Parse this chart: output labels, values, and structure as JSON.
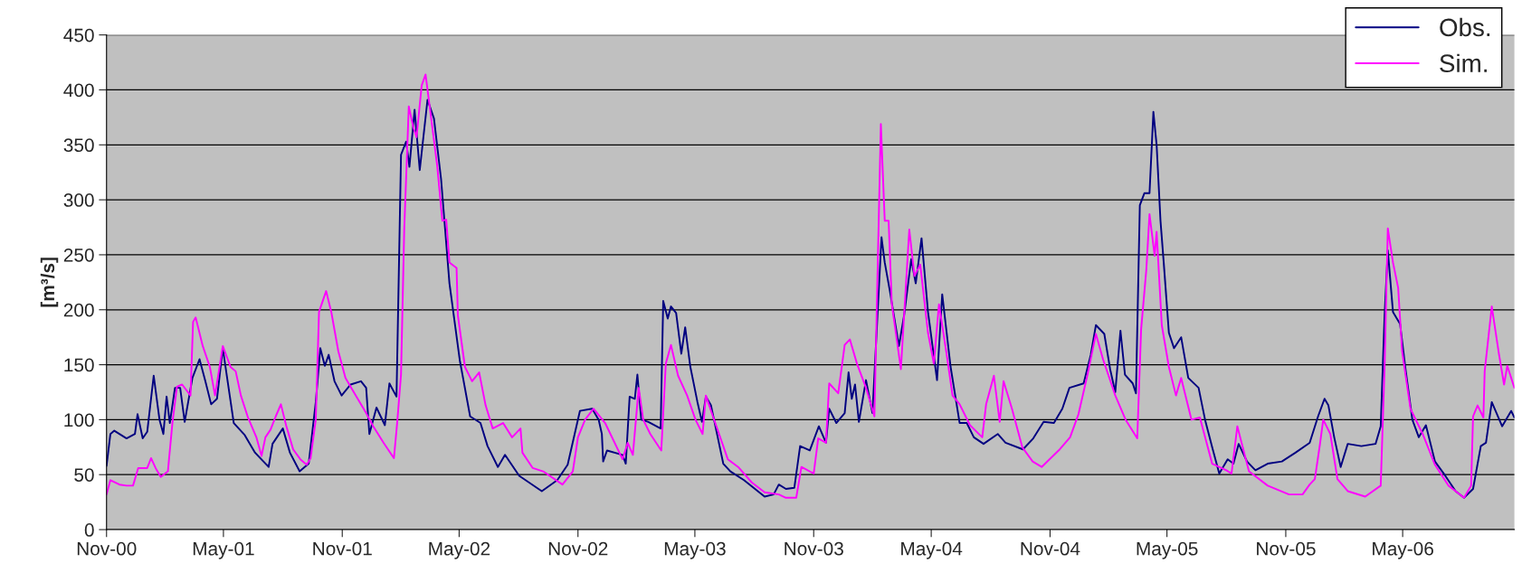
{
  "chart_data": {
    "type": "line",
    "ylabel": "[m³/s]",
    "xlim": [
      "2000-11-01",
      "2006-10-21"
    ],
    "ylim": [
      0,
      450
    ],
    "yticks": [
      0,
      50,
      100,
      150,
      200,
      250,
      300,
      350,
      400,
      450
    ],
    "xticks": [
      {
        "value": "2000-11-01",
        "label": "Nov-00"
      },
      {
        "value": "2001-05-01",
        "label": "May-01"
      },
      {
        "value": "2001-11-01",
        "label": "Nov-01"
      },
      {
        "value": "2002-05-01",
        "label": "May-02"
      },
      {
        "value": "2002-11-01",
        "label": "Nov-02"
      },
      {
        "value": "2003-05-01",
        "label": "May-03"
      },
      {
        "value": "2003-11-01",
        "label": "Nov-03"
      },
      {
        "value": "2004-05-01",
        "label": "May-04"
      },
      {
        "value": "2004-11-01",
        "label": "Nov-04"
      },
      {
        "value": "2005-05-01",
        "label": "May-05"
      },
      {
        "value": "2005-11-01",
        "label": "Nov-05"
      },
      {
        "value": "2006-05-01",
        "label": "May-06"
      }
    ],
    "grid": "y",
    "legend": "top right",
    "marker": "none",
    "line_style": "solid",
    "series": [
      {
        "name": "Obs.",
        "color": "#000080",
        "x": [
          "2000-11-01",
          "2000-11-07",
          "2000-11-13",
          "2000-12-02",
          "2000-12-15",
          "2000-12-19",
          "2000-12-27",
          "2001-01-03",
          "2001-01-13",
          "2001-01-22",
          "2001-01-28",
          "2001-02-02",
          "2001-02-07",
          "2001-02-15",
          "2001-02-23",
          "2001-03-02",
          "2001-03-14",
          "2001-03-25",
          "2001-04-03",
          "2001-04-12",
          "2001-04-21",
          "2001-04-30",
          "2001-05-09",
          "2001-05-17",
          "2001-06-03",
          "2001-06-19",
          "2001-07-10",
          "2001-07-16",
          "2001-08-01",
          "2001-08-12",
          "2001-08-27",
          "2001-09-10",
          "2001-09-21",
          "2001-09-28",
          "2001-10-05",
          "2001-10-11",
          "2001-10-20",
          "2001-10-31",
          "2001-11-14",
          "2001-11-30",
          "2001-12-08",
          "2001-12-13",
          "2001-12-24",
          "2002-01-06",
          "2002-01-13",
          "2002-01-24",
          "2002-01-31",
          "2002-02-08",
          "2002-02-13",
          "2002-02-21",
          "2002-03-01",
          "2002-03-13",
          "2002-03-23",
          "2002-04-03",
          "2002-04-16",
          "2002-05-02",
          "2002-05-18",
          "2002-06-03",
          "2002-06-14",
          "2002-06-30",
          "2002-07-11",
          "2002-08-02",
          "2002-09-06",
          "2002-09-30",
          "2002-10-16",
          "2002-11-04",
          "2002-11-23",
          "2002-12-03",
          "2002-12-08",
          "2002-12-10",
          "2002-12-16",
          "2003-01-09",
          "2003-01-14",
          "2003-01-20",
          "2003-01-28",
          "2003-02-01",
          "2003-02-07",
          "2003-02-18",
          "2003-03-09",
          "2003-03-13",
          "2003-03-20",
          "2003-03-25",
          "2003-04-02",
          "2003-04-10",
          "2003-04-16",
          "2003-04-24",
          "2003-05-05",
          "2003-05-12",
          "2003-05-18",
          "2003-05-26",
          "2003-06-14",
          "2003-06-25",
          "2003-07-16",
          "2003-08-17",
          "2003-08-31",
          "2003-09-08",
          "2003-09-19",
          "2003-10-02",
          "2003-10-11",
          "2003-10-26",
          "2003-11-09",
          "2003-11-20",
          "2003-11-25",
          "2003-12-06",
          "2003-12-19",
          "2003-12-25",
          "2003-12-30",
          "2004-01-04",
          "2004-01-10",
          "2004-01-21",
          "2004-01-31",
          "2004-02-14",
          "2004-02-19",
          "2004-02-27",
          "2004-03-12",
          "2004-03-20",
          "2004-03-31",
          "2004-04-07",
          "2004-04-16",
          "2004-04-26",
          "2004-05-10",
          "2004-05-18",
          "2004-05-31",
          "2004-06-14",
          "2004-06-25",
          "2004-07-06",
          "2004-07-21",
          "2004-08-12",
          "2004-08-24",
          "2004-09-20",
          "2004-10-06",
          "2004-10-22",
          "2004-11-07",
          "2004-11-20",
          "2004-12-01",
          "2004-12-23",
          "2005-01-03",
          "2005-01-11",
          "2005-01-24",
          "2005-02-02",
          "2005-02-10",
          "2005-02-18",
          "2005-02-25",
          "2005-03-09",
          "2005-03-14",
          "2005-03-20",
          "2005-03-27",
          "2005-04-04",
          "2005-04-10",
          "2005-04-15",
          "2005-04-21",
          "2005-04-26",
          "2005-05-04",
          "2005-05-12",
          "2005-05-23",
          "2005-06-03",
          "2005-06-19",
          "2005-06-29",
          "2005-07-10",
          "2005-07-21",
          "2005-08-03",
          "2005-08-12",
          "2005-08-20",
          "2005-09-02",
          "2005-09-15",
          "2005-10-04",
          "2005-10-26",
          "2005-11-16",
          "2005-12-08",
          "2005-12-21",
          "2005-12-31",
          "2006-01-06",
          "2006-01-15",
          "2006-01-25",
          "2006-02-05",
          "2006-02-26",
          "2006-03-20",
          "2006-03-28",
          "2006-04-03",
          "2006-04-08",
          "2006-04-16",
          "2006-04-27",
          "2006-05-05",
          "2006-05-16",
          "2006-05-26",
          "2006-06-06",
          "2006-06-20",
          "2006-07-06",
          "2006-07-22",
          "2006-08-04",
          "2006-08-18",
          "2006-08-30",
          "2006-09-07",
          "2006-09-16",
          "2006-10-02",
          "2006-10-16",
          "2006-10-21"
        ],
        "values": [
          58,
          87,
          90,
          83,
          87,
          105,
          83,
          89,
          140,
          100,
          87,
          121,
          97,
          129,
          129,
          98,
          138,
          155,
          135,
          114,
          119,
          165,
          129,
          97,
          86,
          70,
          57,
          78,
          92,
          70,
          53,
          60,
          116,
          165,
          149,
          159,
          135,
          122,
          132,
          135,
          129,
          87,
          111,
          95,
          133,
          121,
          341,
          353,
          330,
          382,
          327,
          391,
          374,
          319,
          224,
          154,
          103,
          97,
          76,
          57,
          68,
          49,
          35,
          45,
          59,
          108,
          110,
          100,
          87,
          62,
          72,
          68,
          60,
          121,
          119,
          141,
          100,
          98,
          92,
          208,
          192,
          203,
          197,
          160,
          184,
          148,
          116,
          98,
          121,
          113,
          60,
          53,
          45,
          30,
          32,
          41,
          37,
          38,
          76,
          72,
          94,
          79,
          110,
          97,
          106,
          143,
          119,
          132,
          98,
          136,
          106,
          266,
          243,
          217,
          167,
          195,
          246,
          224,
          265,
          198,
          136,
          214,
          148,
          97,
          97,
          84,
          78,
          87,
          79,
          73,
          83,
          98,
          97,
          110,
          129,
          133,
          159,
          186,
          178,
          146,
          125,
          181,
          141,
          133,
          124,
          295,
          306,
          306,
          380,
          350,
          281,
          243,
          179,
          165,
          175,
          138,
          129,
          100,
          75,
          51,
          64,
          60,
          78,
          62,
          54,
          60,
          62,
          70,
          79,
          103,
          119,
          113,
          84,
          57,
          78,
          76,
          78,
          94,
          195,
          254,
          198,
          187,
          148,
          100,
          84,
          95,
          62,
          49,
          35,
          29,
          37,
          76,
          79,
          116,
          94,
          108,
          102
        ]
      },
      {
        "name": "Sim.",
        "color": "#ff00ff",
        "x": [
          "2000-11-01",
          "2000-11-07",
          "2000-11-21",
          "2000-12-02",
          "2000-12-12",
          "2000-12-20",
          "2001-01-03",
          "2001-01-09",
          "2001-01-16",
          "2001-01-24",
          "2001-02-04",
          "2001-02-11",
          "2001-02-18",
          "2001-02-26",
          "2001-03-11",
          "2001-03-15",
          "2001-03-19",
          "2001-03-30",
          "2001-04-10",
          "2001-04-18",
          "2001-04-30",
          "2001-05-12",
          "2001-05-20",
          "2001-05-28",
          "2001-06-08",
          "2001-06-21",
          "2001-06-29",
          "2001-07-05",
          "2001-07-13",
          "2001-07-21",
          "2001-07-29",
          "2001-08-06",
          "2001-08-17",
          "2001-08-28",
          "2001-09-07",
          "2001-09-13",
          "2001-09-21",
          "2001-09-26",
          "2001-10-07",
          "2001-10-15",
          "2001-10-26",
          "2001-11-06",
          "2001-11-22",
          "2001-12-08",
          "2001-12-19",
          "2002-01-04",
          "2002-01-20",
          "2002-01-25",
          "2002-01-31",
          "2002-02-05",
          "2002-02-12",
          "2002-02-19",
          "2002-02-24",
          "2002-03-04",
          "2002-03-10",
          "2002-03-17",
          "2002-03-28",
          "2002-04-05",
          "2002-04-11",
          "2002-04-16",
          "2002-04-27",
          "2002-04-29",
          "2002-05-10",
          "2002-05-21",
          "2002-06-01",
          "2002-06-11",
          "2002-06-22",
          "2002-07-08",
          "2002-07-22",
          "2002-08-04",
          "2002-08-07",
          "2002-08-23",
          "2002-09-08",
          "2002-10-08",
          "2002-10-24",
          "2002-11-01",
          "2002-11-12",
          "2002-11-25",
          "2002-12-13",
          "2003-01-09",
          "2003-01-17",
          "2003-01-25",
          "2003-02-03",
          "2003-02-10",
          "2003-02-21",
          "2003-03-10",
          "2003-03-17",
          "2003-03-25",
          "2003-04-05",
          "2003-04-19",
          "2003-05-02",
          "2003-05-13",
          "2003-05-18",
          "2003-05-29",
          "2003-06-21",
          "2003-07-07",
          "2003-07-28",
          "2003-08-17",
          "2003-09-08",
          "2003-09-19",
          "2003-10-05",
          "2003-10-13",
          "2003-11-01",
          "2003-11-08",
          "2003-11-20",
          "2003-11-25",
          "2003-12-09",
          "2003-12-19",
          "2003-12-27",
          "2004-01-07",
          "2004-01-21",
          "2004-02-03",
          "2004-02-13",
          "2004-02-19",
          "2004-02-25",
          "2004-03-01",
          "2004-03-15",
          "2004-03-28",
          "2004-04-05",
          "2004-04-14",
          "2004-04-26",
          "2004-05-05",
          "2004-05-13",
          "2004-05-24",
          "2004-06-03",
          "2004-06-14",
          "2004-06-30",
          "2004-07-19",
          "2004-07-25",
          "2004-08-06",
          "2004-08-15",
          "2004-08-21",
          "2004-09-03",
          "2004-09-19",
          "2004-10-05",
          "2004-10-19",
          "2004-11-16",
          "2004-12-02",
          "2004-12-15",
          "2004-12-29",
          "2005-01-11",
          "2005-01-22",
          "2005-02-10",
          "2005-02-26",
          "2005-03-16",
          "2005-03-22",
          "2005-03-30",
          "2005-04-04",
          "2005-04-12",
          "2005-04-15",
          "2005-04-23",
          "2005-05-04",
          "2005-05-15",
          "2005-05-23",
          "2005-06-08",
          "2005-06-21",
          "2005-07-10",
          "2005-08-01",
          "2005-08-09",
          "2005-08-18",
          "2005-09-05",
          "2005-10-04",
          "2005-11-06",
          "2005-11-27",
          "2005-12-08",
          "2005-12-16",
          "2005-12-24",
          "2005-12-29",
          "2006-01-09",
          "2006-01-20",
          "2006-02-05",
          "2006-03-04",
          "2006-03-28",
          "2006-04-03",
          "2006-04-08",
          "2006-04-16",
          "2006-04-24",
          "2006-04-30",
          "2006-05-13",
          "2006-06-01",
          "2006-06-20",
          "2006-07-11",
          "2006-08-04",
          "2006-08-15",
          "2006-08-18",
          "2006-08-25",
          "2006-09-03",
          "2006-09-05",
          "2006-09-16",
          "2006-09-27",
          "2006-10-05",
          "2006-10-10",
          "2006-10-21"
        ],
        "values": [
          32,
          45,
          41,
          40,
          40,
          56,
          56,
          65,
          56,
          48,
          53,
          97,
          130,
          132,
          122,
          189,
          193,
          167,
          148,
          122,
          167,
          148,
          144,
          122,
          102,
          84,
          67,
          84,
          91,
          103,
          114,
          95,
          73,
          64,
          59,
          65,
          100,
          198,
          217,
          198,
          162,
          138,
          122,
          106,
          94,
          79,
          65,
          97,
          141,
          274,
          385,
          366,
          357,
          404,
          414,
          382,
          331,
          281,
          282,
          243,
          238,
          195,
          148,
          135,
          143,
          113,
          92,
          97,
          84,
          92,
          70,
          56,
          53,
          41,
          53,
          84,
          100,
          110,
          97,
          64,
          79,
          68,
          129,
          100,
          87,
          72,
          151,
          168,
          140,
          122,
          100,
          87,
          122,
          103,
          64,
          57,
          43,
          34,
          32,
          29,
          29,
          57,
          51,
          83,
          79,
          133,
          124,
          168,
          173,
          151,
          129,
          103,
          369,
          281,
          281,
          205,
          146,
          273,
          231,
          241,
          179,
          151,
          205,
          163,
          122,
          114,
          95,
          84,
          114,
          140,
          98,
          135,
          110,
          75,
          62,
          57,
          73,
          84,
          105,
          141,
          178,
          155,
          122,
          100,
          83,
          182,
          236,
          287,
          249,
          271,
          186,
          148,
          122,
          138,
          100,
          102,
          60,
          54,
          51,
          94,
          53,
          40,
          32,
          32,
          41,
          46,
          78,
          100,
          87,
          46,
          35,
          30,
          40,
          148,
          274,
          243,
          220,
          163,
          110,
          87,
          59,
          40,
          29,
          40,
          103,
          113,
          102,
          144,
          203,
          160,
          132,
          149,
          129
        ]
      }
    ]
  }
}
